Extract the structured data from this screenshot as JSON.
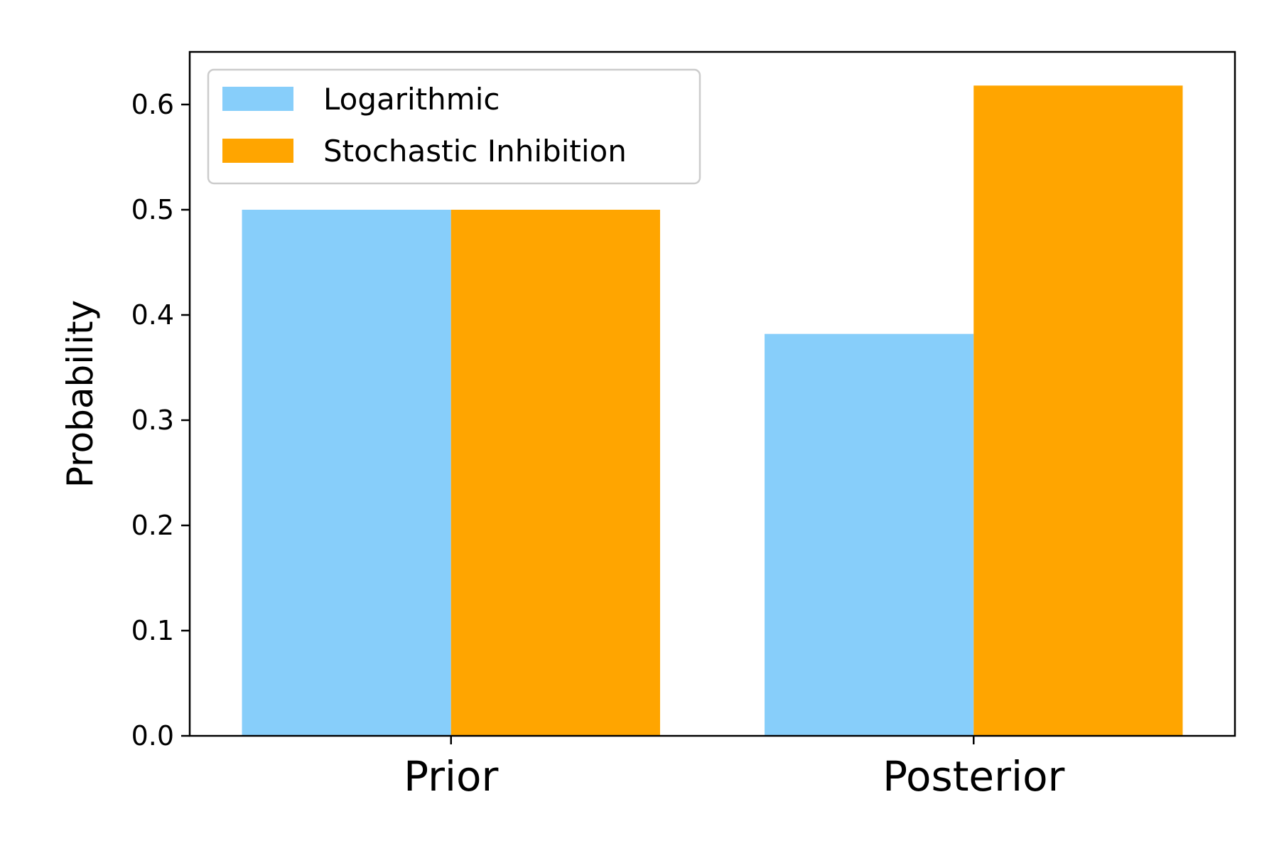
{
  "chart_data": {
    "type": "bar",
    "title": "",
    "xlabel": "",
    "ylabel": "Probability",
    "categories": [
      "Prior",
      "Posterior"
    ],
    "series": [
      {
        "name": "Logarithmic",
        "values": [
          0.5,
          0.382
        ],
        "color": "#87CEFA"
      },
      {
        "name": "Stochastic Inhibition",
        "values": [
          0.5,
          0.618
        ],
        "color": "#FFA500"
      }
    ],
    "ylim": [
      0,
      0.65
    ],
    "yticks": [
      0.0,
      0.1,
      0.2,
      0.3,
      0.4,
      0.5,
      0.6
    ],
    "ytick_labels": [
      "0.0",
      "0.1",
      "0.2",
      "0.3",
      "0.4",
      "0.5",
      "0.6"
    ],
    "grid": false,
    "legend_position": "top-left"
  }
}
